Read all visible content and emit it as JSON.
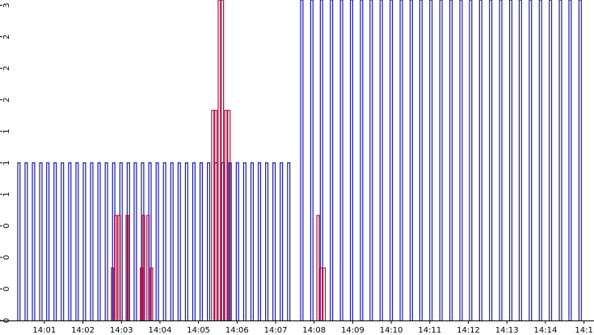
{
  "chart_data": {
    "type": "pulse",
    "xlim": [
      839.85,
      855.26
    ],
    "ylim": [
      0,
      3.05
    ],
    "pulse_width": 0.06,
    "xticks": [
      {
        "value": 841,
        "label": "14:01"
      },
      {
        "value": 842,
        "label": "14:02"
      },
      {
        "value": 843,
        "label": "14:03"
      },
      {
        "value": 844,
        "label": "14:04"
      },
      {
        "value": 845,
        "label": "14:05"
      },
      {
        "value": 846,
        "label": "14:06"
      },
      {
        "value": 847,
        "label": "14:07"
      },
      {
        "value": 848,
        "label": "14:08"
      },
      {
        "value": 849,
        "label": "14:09"
      },
      {
        "value": 850,
        "label": "14:10"
      },
      {
        "value": 851,
        "label": "14:11"
      },
      {
        "value": 852,
        "label": "14:12"
      },
      {
        "value": 853,
        "label": "14:13"
      },
      {
        "value": 854,
        "label": "14:14"
      },
      {
        "value": 855,
        "label": "14:1"
      }
    ],
    "yticks": [
      {
        "value": 0,
        "label": "0"
      },
      {
        "value": 0.3,
        "label": "0"
      },
      {
        "value": 0.6,
        "label": "0"
      },
      {
        "value": 0.9,
        "label": "0"
      },
      {
        "value": 1.2,
        "label": "1"
      },
      {
        "value": 1.5,
        "label": "1"
      },
      {
        "value": 1.8,
        "label": "1"
      },
      {
        "value": 2.1,
        "label": "2"
      },
      {
        "value": 2.4,
        "label": "2"
      },
      {
        "value": 2.7,
        "label": "2"
      },
      {
        "value": 3.0,
        "label": "3"
      }
    ],
    "series": [
      {
        "color": "#1a1aaa",
        "x": [
          840.31,
          840.5,
          840.69,
          840.88,
          841.06,
          841.25,
          841.44,
          841.63,
          841.82,
          842.01,
          842.2,
          842.39,
          842.58,
          842.77,
          842.96,
          843.15,
          843.33,
          843.52,
          843.71,
          843.9,
          844.09,
          844.28,
          844.47,
          844.66,
          844.85,
          845.04,
          845.23,
          845.42,
          845.6,
          845.79,
          845.98,
          846.17,
          846.36,
          846.55,
          846.74,
          846.93,
          847.12,
          847.31,
          847.65,
          847.91,
          848.16,
          848.42,
          848.68,
          848.94,
          849.2,
          849.45,
          849.71,
          849.97,
          850.23,
          850.49,
          850.74,
          851.0,
          851.26,
          851.52,
          851.78,
          852.03,
          852.29,
          852.55,
          852.81,
          853.07,
          853.32,
          853.58,
          853.84,
          854.1,
          854.36,
          854.61,
          854.87
        ],
        "values": [
          1.5,
          1.5,
          1.5,
          1.5,
          1.5,
          1.5,
          1.5,
          1.5,
          1.5,
          1.5,
          1.5,
          1.5,
          1.5,
          1.5,
          1.5,
          1.5,
          1.5,
          1.5,
          1.5,
          1.5,
          1.5,
          1.5,
          1.5,
          1.5,
          1.5,
          1.5,
          1.5,
          1.5,
          1.5,
          1.5,
          1.5,
          1.5,
          1.5,
          1.5,
          1.5,
          1.5,
          1.5,
          1.5,
          3.05,
          3.05,
          3.05,
          3.05,
          3.05,
          3.05,
          3.05,
          3.05,
          3.05,
          3.05,
          3.05,
          3.05,
          3.05,
          3.05,
          3.05,
          3.05,
          3.05,
          3.05,
          3.05,
          3.05,
          3.05,
          3.05,
          3.05,
          3.05,
          3.05,
          3.05,
          3.05,
          3.05,
          3.05
        ]
      },
      {
        "color": "#b01040",
        "x": [
          842.74,
          842.82,
          842.91,
          843.12,
          843.49,
          843.54,
          843.66,
          843.75,
          845.34,
          845.42,
          845.51,
          845.59,
          845.68,
          845.76,
          848.07,
          848.15,
          848.23
        ],
        "values": [
          0.5,
          1.0,
          1.0,
          1.0,
          0.5,
          1.0,
          1.0,
          0.5,
          2.0,
          2.0,
          3.05,
          3.05,
          2.0,
          2.0,
          1.0,
          0.5,
          0.5
        ]
      }
    ]
  }
}
